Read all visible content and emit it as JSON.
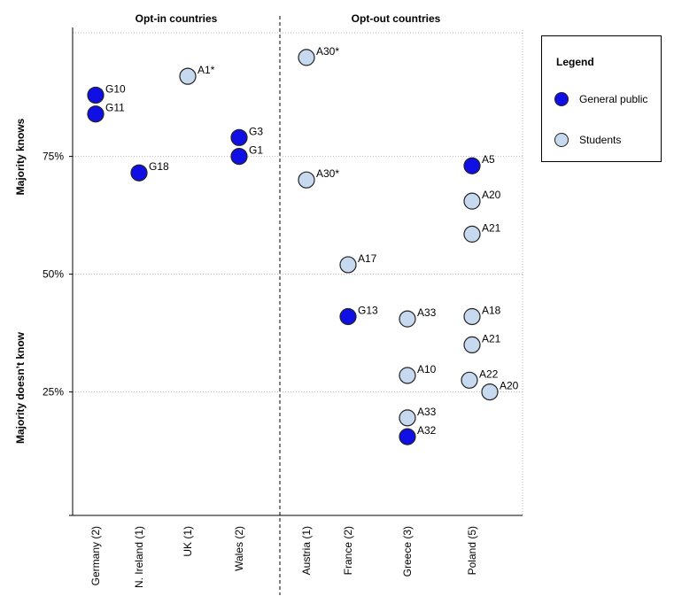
{
  "chart_data": {
    "type": "scatter",
    "title": "",
    "group_labels": [
      "Opt-in countries",
      "Opt-out countries"
    ],
    "categories": [
      "Germany (2)",
      "N. Ireland (1)",
      "UK (1)",
      "Wales (2)",
      "Austria (1)",
      "France (2)",
      "Greece (3)",
      "Poland (5)"
    ],
    "xlabel": "",
    "ylabel_upper": "Majority knows",
    "ylabel_lower": "Majority doesn’t know",
    "y_ticks": [
      25,
      50,
      75
    ],
    "y_tick_labels": [
      "25%",
      "50%",
      "75%"
    ],
    "ylim": [
      0,
      105
    ],
    "grid": "dotted horizontal",
    "colors": {
      "General public": "#1010e6",
      "Students": "#c6d9ee"
    },
    "series": [
      {
        "name": "General public",
        "points": [
          {
            "category": "Germany (2)",
            "y": 88,
            "label": "G10"
          },
          {
            "category": "Germany (2)",
            "y": 84,
            "label": "G11"
          },
          {
            "category": "N. Ireland (1)",
            "y": 71.5,
            "label": "G18"
          },
          {
            "category": "Wales (2)",
            "y": 79,
            "label": "G3"
          },
          {
            "category": "Wales (2)",
            "y": 75,
            "label": "G1"
          },
          {
            "category": "France (2)",
            "y": 41,
            "label": "G13"
          },
          {
            "category": "Greece (3)",
            "y": 15.5,
            "label": "A32"
          },
          {
            "category": "Poland (5)",
            "y": 73,
            "label": "A5"
          }
        ]
      },
      {
        "name": "Students",
        "points": [
          {
            "category": "UK (1)",
            "y": 92,
            "label": "A1*"
          },
          {
            "category": "Austria (1)",
            "y": 96,
            "label": "A30*"
          },
          {
            "category": "Austria (1)",
            "y": 70,
            "label": "A30*"
          },
          {
            "category": "France (2)",
            "y": 52,
            "label": "A17"
          },
          {
            "category": "Greece (3)",
            "y": 40.5,
            "label": "A33"
          },
          {
            "category": "Greece (3)",
            "y": 28.5,
            "label": "A10"
          },
          {
            "category": "Greece (3)",
            "y": 19.5,
            "label": "A33"
          },
          {
            "category": "Poland (5)",
            "y": 65.5,
            "label": "A20"
          },
          {
            "category": "Poland (5)",
            "y": 58.5,
            "label": "A21"
          },
          {
            "category": "Poland (5)",
            "y": 41,
            "label": "A18"
          },
          {
            "category": "Poland (5)",
            "y": 35,
            "label": "A21"
          },
          {
            "category": "Poland (5)",
            "y": 27.5,
            "label": "A22"
          },
          {
            "category": "Poland (5)",
            "y": 25,
            "label": "A20"
          }
        ]
      }
    ]
  },
  "legend": {
    "title": "Legend",
    "items": [
      {
        "label": "General public",
        "color": "#1010e6"
      },
      {
        "label": "Students",
        "color": "#c6d9ee"
      }
    ]
  }
}
